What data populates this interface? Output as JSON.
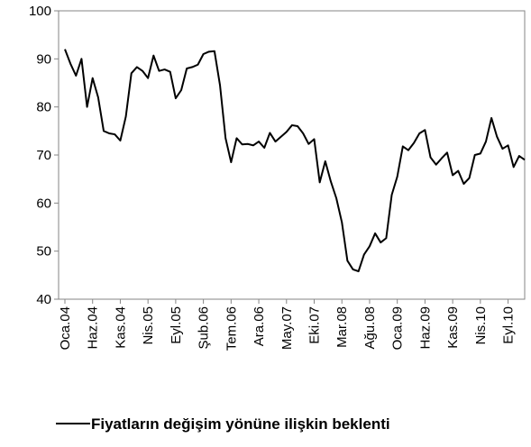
{
  "chart_data": {
    "type": "line",
    "categories": [
      "Oca.04",
      null,
      null,
      null,
      null,
      "Haz.04",
      null,
      null,
      null,
      null,
      "Kas.04",
      null,
      null,
      null,
      null,
      "Nis.05",
      null,
      null,
      null,
      null,
      "Eyl.05",
      null,
      null,
      null,
      null,
      "Şub.06",
      null,
      null,
      null,
      null,
      "Tem.06",
      null,
      null,
      null,
      null,
      "Ara.06",
      null,
      null,
      null,
      null,
      "May.07",
      null,
      null,
      null,
      null,
      "Eki.07",
      null,
      null,
      null,
      null,
      "Mar.08",
      null,
      null,
      null,
      null,
      "Ağu.08",
      null,
      null,
      null,
      null,
      "Oca.09",
      null,
      null,
      null,
      null,
      "Haz.09",
      null,
      null,
      null,
      null,
      "Kas.09",
      null,
      null,
      null,
      null,
      "Nis.10",
      null,
      null,
      null,
      null,
      "Eyl.10",
      null,
      null,
      null
    ],
    "series": [
      {
        "name": "Fiyatların değişim yönüne ilişkin beklenti",
        "color": "#000000",
        "values": [
          92,
          89,
          86.5,
          90,
          80,
          86,
          82,
          75,
          74.5,
          74.3,
          73,
          78,
          87,
          88.3,
          87.5,
          86,
          90.7,
          87.5,
          87.8,
          87.3,
          81.8,
          83.5,
          88,
          88.3,
          88.8,
          91,
          91.5,
          91.6,
          84.5,
          73.5,
          68.5,
          73.5,
          72.2,
          72.3,
          72,
          72.8,
          71.5,
          74.6,
          72.8,
          73.8,
          74.8,
          76.2,
          76,
          74.5,
          72.3,
          73.3,
          64.3,
          68.7,
          64.5,
          61,
          56,
          48,
          46.2,
          45.8,
          49.3,
          51,
          53.7,
          51.8,
          52.7,
          61.7,
          65.5,
          71.8,
          71,
          72.5,
          74.5,
          75.2,
          69.5,
          68,
          69.3,
          70.5,
          65.8,
          66.7,
          64,
          65.2,
          70,
          70.3,
          72.8,
          77.7,
          73.8,
          71.3,
          72,
          67.5,
          69.8,
          69
        ]
      }
    ],
    "ylim": [
      40,
      100
    ],
    "yticks": [
      40,
      50,
      60,
      70,
      80,
      90,
      100
    ],
    "grid": false,
    "legend": "bottom"
  }
}
